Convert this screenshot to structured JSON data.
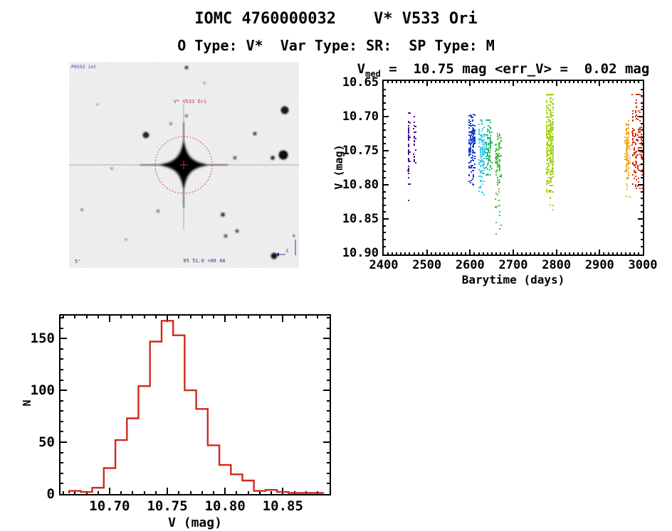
{
  "header": {
    "title": "IOMC 4760000032    V* V533 Ori",
    "subtitle": "O Type: V*  Var Type: SR:  SP Type: M"
  },
  "finding_chart": {
    "survey_label": "POSS2 int",
    "target_label": "V* V533 Ori",
    "coords_label": "05 51.0 +08 48",
    "scale_label": "5'",
    "compass": {
      "north": "N",
      "east": "E"
    },
    "marker_color": "#cc2a2a",
    "annotation_color": "#2a3a8c"
  },
  "chart_data": [
    {
      "id": "lightcurve",
      "type": "scatter",
      "title_prefix": "V",
      "title_sub": "med",
      "title_rest": " =  10.75 mag <err_V> =  0.02 mag",
      "xlabel": "Barytime (days)",
      "ylabel": "V (mag)",
      "xlim": [
        2400,
        3000
      ],
      "vtop": 10.648,
      "vbot": 10.902,
      "x_minor": 10,
      "v_minor": 0.01,
      "xtick_vals": [
        2400,
        2500,
        2600,
        2700,
        2800,
        2900,
        3000
      ],
      "xtick_labels": [
        "2400",
        "2500",
        "2600",
        "2700",
        "2800",
        "2900",
        "3000"
      ],
      "ytick_vals": [
        10.65,
        10.7,
        10.75,
        10.8,
        10.85,
        10.9
      ],
      "ytick_labels": [
        "10.65",
        "10.70",
        "10.75",
        "10.80",
        "10.85",
        "10.90"
      ],
      "grid": false,
      "clusters": [
        {
          "name": "epoch-1a",
          "color": "#4a0f92",
          "x0": 2456.5,
          "x1": 2459.5,
          "n": 48,
          "v0": 10.695,
          "v1": 10.79,
          "tails": [
            {
              "v0": 10.795,
              "v1": 10.808,
              "n": 2
            },
            {
              "v0": 10.818,
              "v1": 10.83,
              "n": 1
            }
          ]
        },
        {
          "name": "epoch-1b",
          "color": "#4a0f92",
          "x0": 2469.5,
          "x1": 2474.0,
          "n": 30,
          "v0": 10.7,
          "v1": 10.775,
          "tails": []
        },
        {
          "name": "epoch-2",
          "color": "#1f3cc8",
          "x0": 2597,
          "x1": 2611,
          "n": 150,
          "v0": 10.695,
          "v1": 10.775,
          "tails": [
            {
              "v0": 10.775,
              "v1": 10.802,
              "n": 14
            }
          ]
        },
        {
          "name": "epoch-3",
          "color": "#3fc8e8",
          "x0": 2621,
          "x1": 2634,
          "n": 130,
          "v0": 10.705,
          "v1": 10.795,
          "tails": [
            {
              "v0": 10.795,
              "v1": 10.816,
              "n": 8
            }
          ]
        },
        {
          "name": "epoch-4",
          "color": "#2eb876",
          "x0": 2637,
          "x1": 2650,
          "n": 100,
          "v0": 10.705,
          "v1": 10.785,
          "tails": []
        },
        {
          "name": "epoch-5",
          "color": "#44c044",
          "x0": 2659,
          "x1": 2671,
          "n": 90,
          "v0": 10.725,
          "v1": 10.8,
          "tails": [
            {
              "v0": 10.8,
              "v1": 10.872,
              "n": 16
            }
          ]
        },
        {
          "name": "epoch-6",
          "color": "#a6d31f",
          "x0": 2776,
          "x1": 2794,
          "n": 320,
          "v0": 10.668,
          "v1": 10.81,
          "tails": [
            {
              "v0": 10.81,
              "v1": 10.838,
              "n": 6
            }
          ]
        },
        {
          "name": "epoch-7",
          "color": "#efa91c",
          "x0": 2959,
          "x1": 2969,
          "n": 100,
          "v0": 10.705,
          "v1": 10.79,
          "tails": [
            {
              "v0": 10.79,
              "v1": 10.825,
              "n": 8
            }
          ]
        },
        {
          "name": "epoch-8",
          "color": "#cd3414",
          "x0": 2976,
          "x1": 2999,
          "n": 150,
          "v0": 10.668,
          "v1": 10.805,
          "tails": []
        }
      ]
    },
    {
      "id": "mag-histogram",
      "type": "bar",
      "xlabel": "V (mag)",
      "ylabel": "N",
      "color": "#cf2a1d",
      "xlim": [
        10.6575,
        10.8905
      ],
      "ylim": [
        0,
        172
      ],
      "x_minor": 0.01,
      "y_minor": 10,
      "xtick_vals": [
        10.7,
        10.75,
        10.8,
        10.85
      ],
      "xtick_labels": [
        "10.70",
        "10.75",
        "10.80",
        "10.85"
      ],
      "ytick_vals": [
        0,
        50,
        100,
        150
      ],
      "ytick_labels": [
        "0",
        "50",
        "100",
        "150"
      ],
      "bin_start": 10.665,
      "bin_width": 0.01,
      "values": [
        3,
        2,
        6,
        25,
        52,
        73,
        104,
        147,
        167,
        153,
        100,
        82,
        47,
        28,
        19,
        13,
        3,
        4,
        2,
        1,
        1,
        1
      ],
      "grid": false
    }
  ]
}
